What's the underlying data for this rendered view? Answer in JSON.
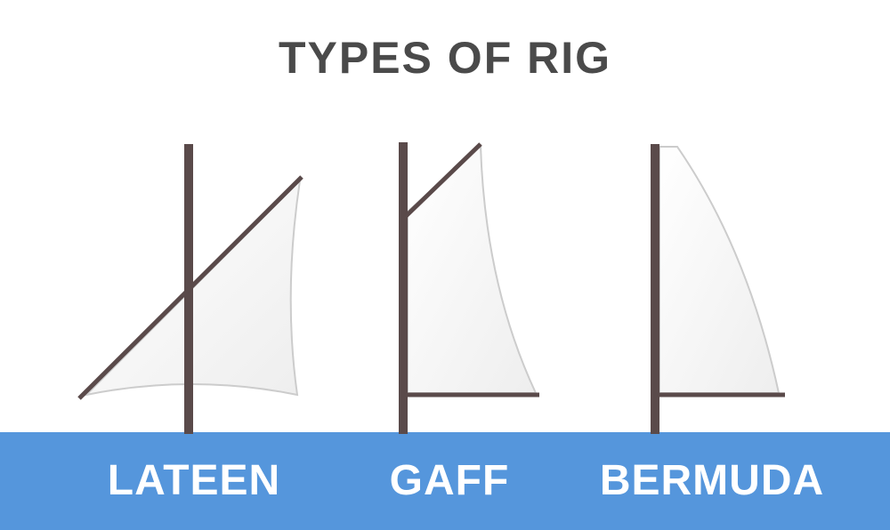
{
  "title": "TYPES OF RIG",
  "rigs": [
    {
      "name": "LATEEN"
    },
    {
      "name": "GAFF"
    },
    {
      "name": "BERMUDA"
    }
  ],
  "colors": {
    "title_text": "#4a4a4a",
    "spar": "#5a4a4a",
    "sail_fill": "#f6f6f6",
    "sail_edge": "#cccccc",
    "water": "#5596dc",
    "label_text": "#ffffff"
  }
}
